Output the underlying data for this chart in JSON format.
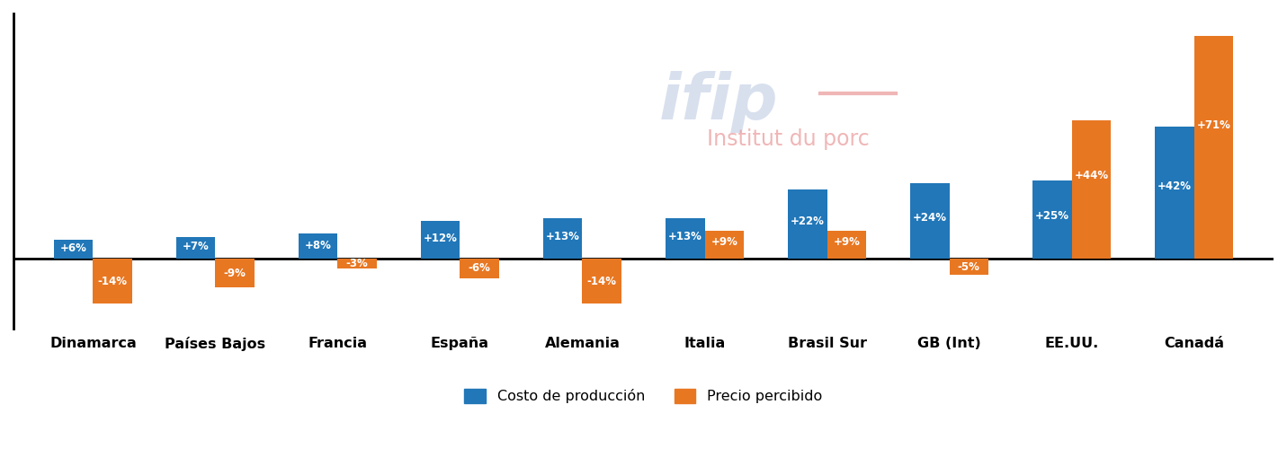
{
  "categories": [
    "Dinamarca",
    "Países Bajos",
    "Francia",
    "España",
    "Alemania",
    "Italia",
    "Brasil Sur",
    "GB (Int)",
    "EE.UU.",
    "Canadá"
  ],
  "costo_produccion": [
    6,
    7,
    8,
    12,
    13,
    13,
    22,
    24,
    25,
    42
  ],
  "precio_percibido": [
    -14,
    -9,
    -3,
    -6,
    -14,
    9,
    9,
    -5,
    44,
    71
  ],
  "costo_labels": [
    "+6%",
    "+7%",
    "+8%",
    "+12%",
    "+13%",
    "+13%",
    "+22%",
    "+24%",
    "+25%",
    "+42%"
  ],
  "precio_labels": [
    "-14%",
    "-9%",
    "-3%",
    "-6%",
    "-14%",
    "+9%",
    "+9%",
    "-5%",
    "+44%",
    "+71%"
  ],
  "bar_color_costo": "#2177b8",
  "bar_color_precio": "#e87722",
  "legend_costo": "Costo de producción",
  "legend_precio": "Precio percibido",
  "background_color": "#ffffff",
  "figsize": [
    14.31,
    5.29
  ],
  "dpi": 100,
  "ylim_min": -22,
  "ylim_max": 78,
  "bar_width": 0.32,
  "label_fontsize": 8.5,
  "tick_fontsize": 11.5
}
